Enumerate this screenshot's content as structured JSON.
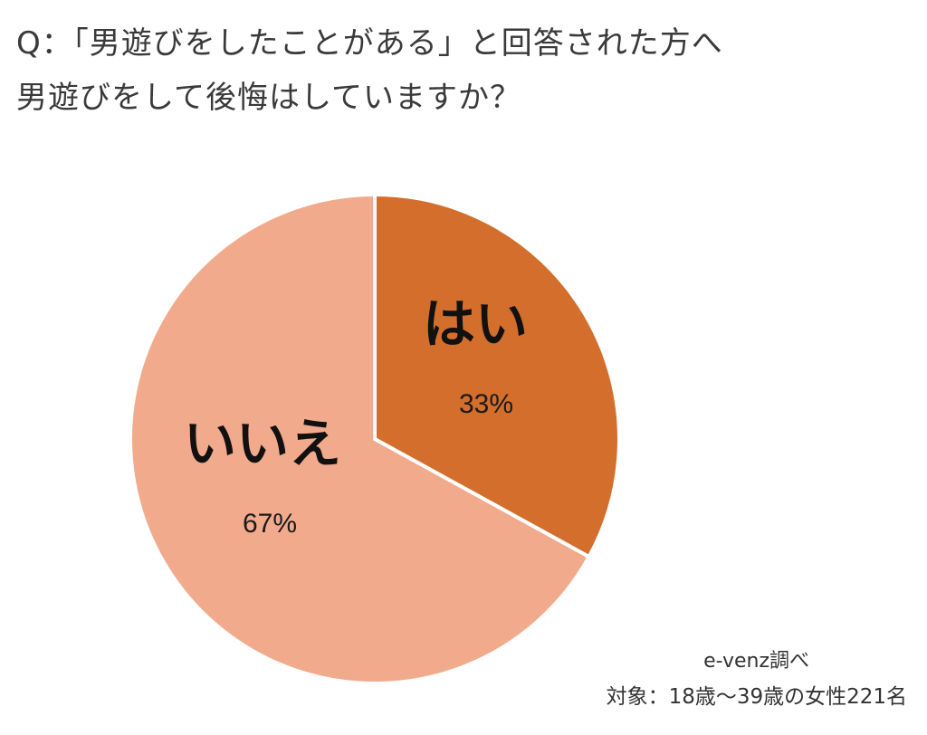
{
  "title": {
    "line1": "Q：「男遊びをしたことがある」と回答された方へ",
    "line2": "男遊びをして後悔はしていますか？"
  },
  "source": {
    "line1": "e-venz調べ",
    "line2": "対象：18歳〜39歳の女性221名"
  },
  "colors": {
    "yes": "#D46E2C",
    "no": "#F1AA8C",
    "separator": "#FFFFFF"
  },
  "chart_data": {
    "type": "pie",
    "title": "Q：「男遊びをしたことがある」と回答された方へ 男遊びをして後悔はしていますか？",
    "slices": [
      {
        "label": "はい",
        "value": 33,
        "display": "33%"
      },
      {
        "label": "いいえ",
        "value": 67,
        "display": "67%"
      }
    ],
    "start": "12 o'clock, clockwise",
    "legend": "none (labels inside slices)"
  }
}
